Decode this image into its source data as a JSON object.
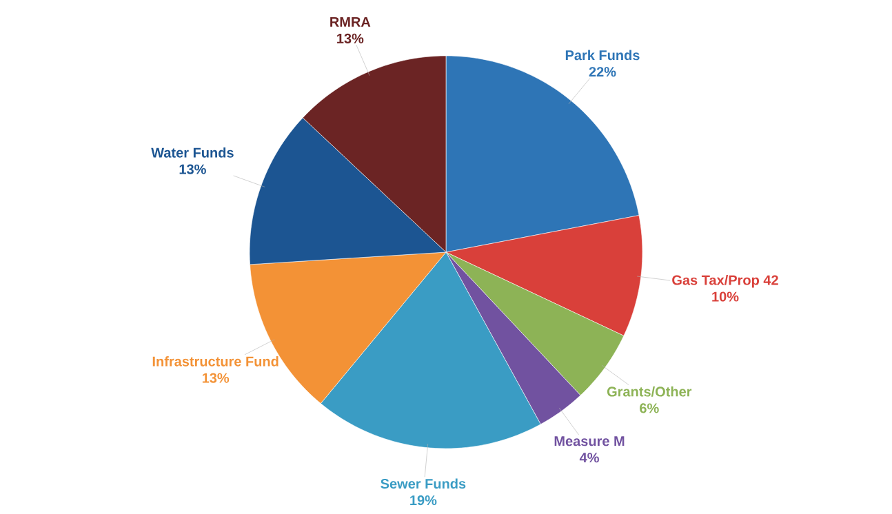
{
  "chart_data": {
    "type": "pie",
    "categories": [
      "Park Funds",
      "Gas Tax/Prop 42",
      "Grants/Other",
      "Measure M",
      "Sewer Funds",
      "Infrastructure Fund",
      "Water Funds",
      "RMRA"
    ],
    "values": [
      22,
      10,
      6,
      4,
      19,
      13,
      13,
      13
    ],
    "value_labels": [
      "22%",
      "10%",
      "6%",
      "4%",
      "19%",
      "13%",
      "13%",
      "13%"
    ],
    "colors": [
      "#2e75b6",
      "#d9403a",
      "#8db356",
      "#7152a0",
      "#3a9cc4",
      "#f39236",
      "#1c5592",
      "#6b2424"
    ]
  }
}
